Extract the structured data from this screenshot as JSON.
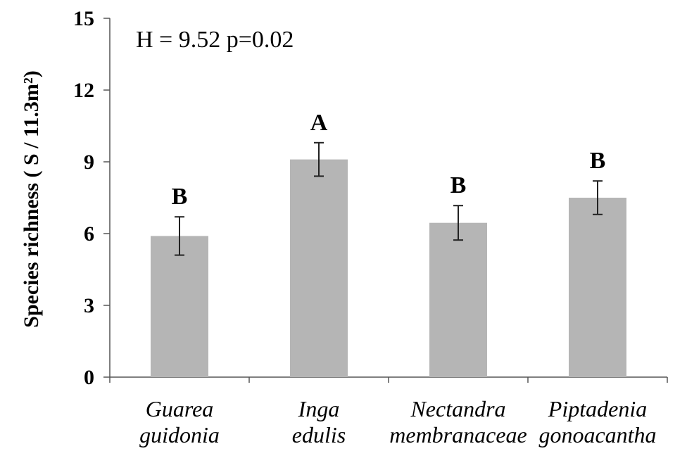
{
  "chart_data": {
    "type": "bar",
    "categories": [
      [
        "Guarea",
        "guidonia"
      ],
      [
        "Inga",
        "edulis"
      ],
      [
        "Nectandra",
        "membranaceae"
      ],
      [
        "Piptadenia",
        "gonoacantha"
      ]
    ],
    "values": [
      5.9,
      9.1,
      6.45,
      7.5
    ],
    "error": [
      0.8,
      0.7,
      0.72,
      0.7
    ],
    "significance_letters": [
      "B",
      "A",
      "B",
      "B"
    ],
    "annotation": "H = 9.52 p=0.02",
    "ylabel": "Species richness ( S / 11.3m²)",
    "xlabel": "",
    "ylim": [
      0,
      15
    ],
    "yticks": [
      "0",
      "3",
      "6",
      "9",
      "12",
      "15"
    ],
    "ytick_values": [
      0,
      3,
      6,
      9,
      12,
      15
    ],
    "bar_color": "#b5b5b5",
    "grid": false,
    "legend": "none"
  }
}
